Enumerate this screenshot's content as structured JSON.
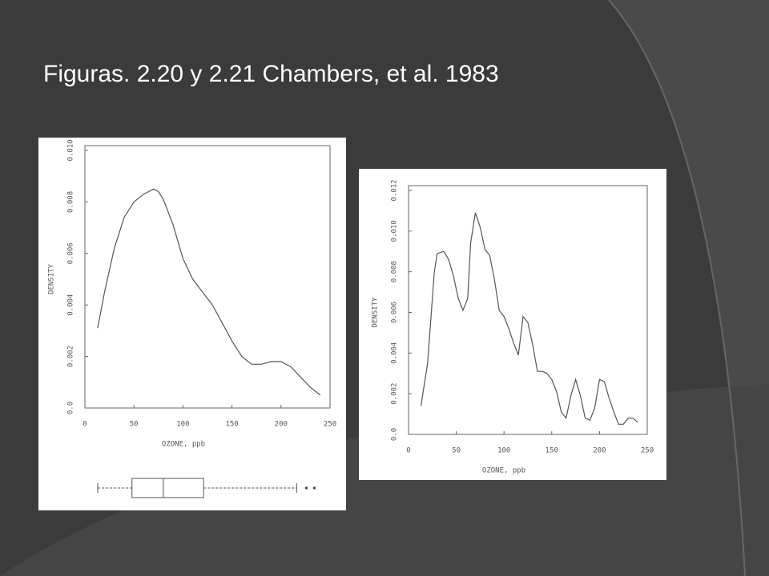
{
  "slide": {
    "title": "Figuras. 2.20 y 2.21 Chambers, et al. 1983"
  },
  "chart_data": [
    {
      "type": "line",
      "color": "#555555",
      "xlabel": "OZONE, ppb",
      "ylabel": "DENSITY",
      "xlim": [
        0,
        250
      ],
      "xticks": [
        0,
        50,
        100,
        150,
        200,
        250
      ],
      "ylim": [
        0,
        0.01
      ],
      "yticks": [
        {
          "value": 0,
          "label": "0.0"
        },
        0.002,
        0.004,
        0.006,
        0.008,
        {
          "value": 0.01,
          "label": "0.010"
        }
      ],
      "x": [
        13,
        20,
        30,
        40,
        50,
        60,
        70,
        75,
        80,
        90,
        100,
        110,
        120,
        130,
        140,
        150,
        160,
        170,
        180,
        190,
        200,
        210,
        220,
        230,
        240
      ],
      "values": [
        0.0031,
        0.0045,
        0.0062,
        0.0074,
        0.008,
        0.0083,
        0.0085,
        0.0084,
        0.0081,
        0.0071,
        0.0058,
        0.005,
        0.0045,
        0.004,
        0.0033,
        0.0026,
        0.002,
        0.0017,
        0.0017,
        0.0018,
        0.0018,
        0.0016,
        0.0012,
        0.0008,
        0.0005
      ],
      "boxplot": {
        "min": 13,
        "q1": 48,
        "median": 80,
        "q3": 121,
        "max": 216,
        "outliers": [
          226,
          234
        ]
      }
    },
    {
      "type": "line",
      "color": "#555555",
      "xlabel": "OZONE, ppb",
      "ylabel": "DENSITY",
      "xlim": [
        0,
        250
      ],
      "xticks": [
        0,
        50,
        100,
        150,
        200,
        250
      ],
      "ylim": [
        0,
        0.012
      ],
      "yticks": [
        {
          "value": 0,
          "label": "0.0"
        },
        0.002,
        0.004,
        0.006,
        0.008,
        {
          "value": 0.01,
          "label": "0.010"
        },
        0.012
      ],
      "x": [
        13,
        20,
        27,
        30,
        37,
        42,
        47,
        52,
        57,
        62,
        65,
        70,
        75,
        80,
        85,
        90,
        95,
        100,
        105,
        110,
        115,
        120,
        125,
        130,
        135,
        140,
        145,
        150,
        155,
        160,
        165,
        170,
        175,
        180,
        185,
        190,
        195,
        200,
        205,
        210,
        215,
        220,
        225,
        230,
        235,
        240
      ],
      "values": [
        0.0014,
        0.0035,
        0.008,
        0.0089,
        0.009,
        0.0086,
        0.0078,
        0.0067,
        0.0061,
        0.0067,
        0.0094,
        0.0109,
        0.0102,
        0.0091,
        0.0088,
        0.0076,
        0.0061,
        0.0058,
        0.0052,
        0.0045,
        0.0039,
        0.0058,
        0.0055,
        0.0044,
        0.0031,
        0.0031,
        0.003,
        0.0027,
        0.0021,
        0.0011,
        0.0008,
        0.0019,
        0.0027,
        0.0019,
        0.0008,
        0.0007,
        0.0013,
        0.0027,
        0.0026,
        0.0018,
        0.0011,
        0.0005,
        0.0005,
        0.0008,
        0.0008,
        0.0006
      ]
    }
  ]
}
